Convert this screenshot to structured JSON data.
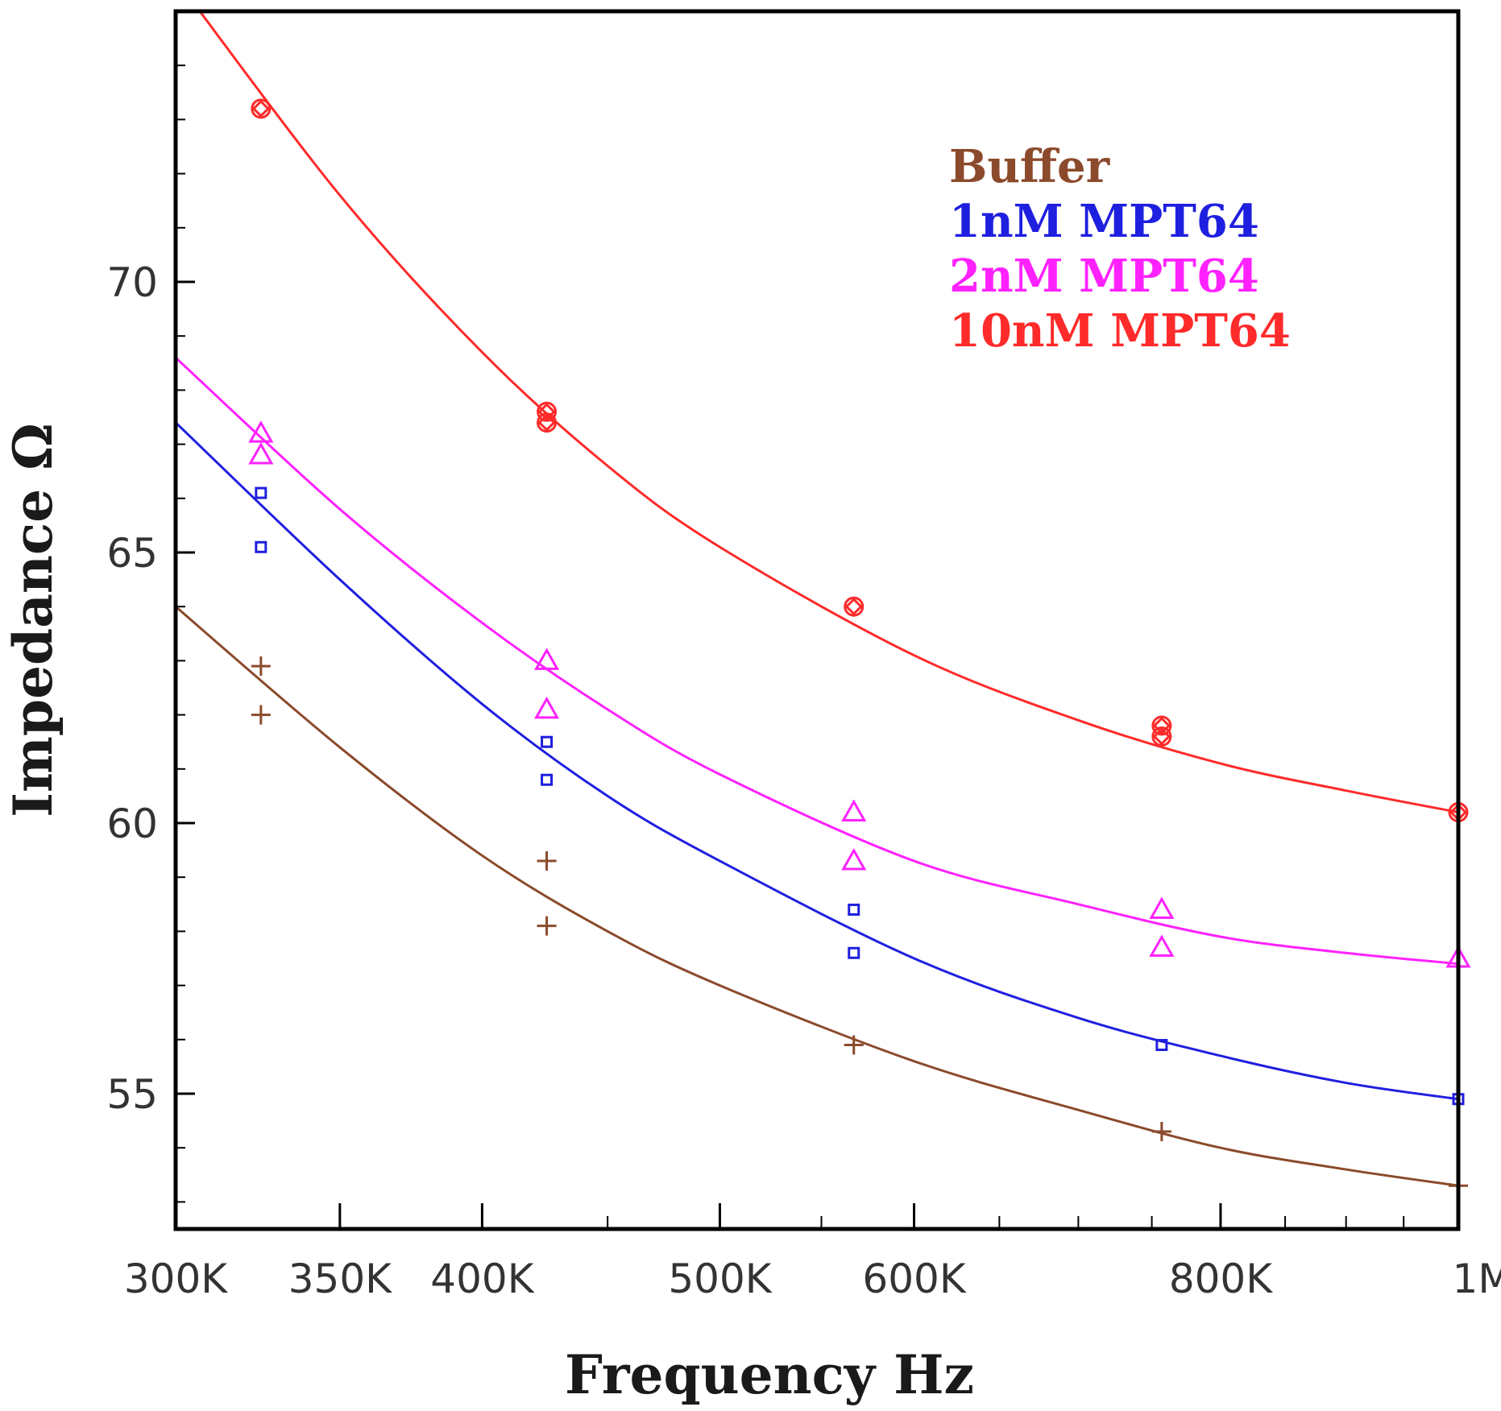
{
  "chart_data": {
    "type": "scatter",
    "title": "",
    "xlabel": "Frequency Hz",
    "ylabel": "Impedance Ω",
    "x_scale": "log",
    "xlim": [
      300000,
      1000000
    ],
    "ylim": [
      52.5,
      75
    ],
    "x_ticks": [
      {
        "value": 300000,
        "label": "300K"
      },
      {
        "value": 350000,
        "label": "350K"
      },
      {
        "value": 400000,
        "label": "400K"
      },
      {
        "value": 500000,
        "label": "500K"
      },
      {
        "value": 600000,
        "label": "600K"
      },
      {
        "value": 800000,
        "label": "800K"
      },
      {
        "value": 1000000,
        "label": "1M"
      }
    ],
    "y_ticks": [
      {
        "value": 55,
        "label": "55"
      },
      {
        "value": 60,
        "label": "60"
      },
      {
        "value": 65,
        "label": "65"
      },
      {
        "value": 70,
        "label": "70"
      }
    ],
    "grid": false,
    "legend_position": "top-right",
    "series": [
      {
        "name": "Buffer",
        "color": "#8B4A2B",
        "marker": "plus",
        "points": [
          [
            325000,
            62.9
          ],
          [
            325000,
            62.0
          ],
          [
            425000,
            59.3
          ],
          [
            425000,
            58.1
          ],
          [
            567000,
            55.9
          ],
          [
            757000,
            54.3
          ],
          [
            1000000,
            53.3
          ]
        ],
        "fit": [
          [
            300000,
            64.0
          ],
          [
            350000,
            61.4
          ],
          [
            400000,
            59.4
          ],
          [
            450000,
            58.0
          ],
          [
            500000,
            57.0
          ],
          [
            600000,
            55.6
          ],
          [
            700000,
            54.7
          ],
          [
            800000,
            54.0
          ],
          [
            900000,
            53.6
          ],
          [
            1000000,
            53.3
          ]
        ]
      },
      {
        "name": "1nM MPT64",
        "color": "#1F1FE0",
        "marker": "square",
        "points": [
          [
            325000,
            66.1
          ],
          [
            325000,
            65.1
          ],
          [
            425000,
            61.5
          ],
          [
            425000,
            60.8
          ],
          [
            567000,
            58.4
          ],
          [
            567000,
            57.6
          ],
          [
            757000,
            55.9
          ],
          [
            1000000,
            54.9
          ]
        ],
        "fit": [
          [
            300000,
            67.4
          ],
          [
            350000,
            64.5
          ],
          [
            400000,
            62.2
          ],
          [
            450000,
            60.5
          ],
          [
            500000,
            59.3
          ],
          [
            600000,
            57.5
          ],
          [
            700000,
            56.4
          ],
          [
            800000,
            55.7
          ],
          [
            900000,
            55.2
          ],
          [
            1000000,
            54.9
          ]
        ]
      },
      {
        "name": "2nM MPT64",
        "color": "#FF22FF",
        "marker": "triangle",
        "points": [
          [
            325000,
            67.2
          ],
          [
            325000,
            66.8
          ],
          [
            425000,
            63.0
          ],
          [
            425000,
            62.1
          ],
          [
            567000,
            60.2
          ],
          [
            567000,
            59.3
          ],
          [
            757000,
            58.4
          ],
          [
            757000,
            57.7
          ],
          [
            1000000,
            57.5
          ]
        ],
        "fit": [
          [
            300000,
            68.6
          ],
          [
            350000,
            65.8
          ],
          [
            400000,
            63.7
          ],
          [
            450000,
            62.1
          ],
          [
            500000,
            60.9
          ],
          [
            600000,
            59.3
          ],
          [
            700000,
            58.5
          ],
          [
            800000,
            57.9
          ],
          [
            900000,
            57.6
          ],
          [
            1000000,
            57.4
          ]
        ]
      },
      {
        "name": "10nM MPT64",
        "color": "#FF2A2A",
        "marker": "circle-diamond",
        "points": [
          [
            325000,
            73.2
          ],
          [
            425000,
            67.6
          ],
          [
            425000,
            67.4
          ],
          [
            567000,
            64.0
          ],
          [
            757000,
            61.8
          ],
          [
            757000,
            61.6
          ],
          [
            1000000,
            60.2
          ]
        ],
        "fit": [
          [
            300000,
            75.6
          ],
          [
            350000,
            71.6
          ],
          [
            400000,
            68.7
          ],
          [
            450000,
            66.6
          ],
          [
            500000,
            65.1
          ],
          [
            600000,
            63.1
          ],
          [
            700000,
            61.9
          ],
          [
            800000,
            61.1
          ],
          [
            900000,
            60.6
          ],
          [
            1000000,
            60.2
          ]
        ]
      }
    ]
  }
}
